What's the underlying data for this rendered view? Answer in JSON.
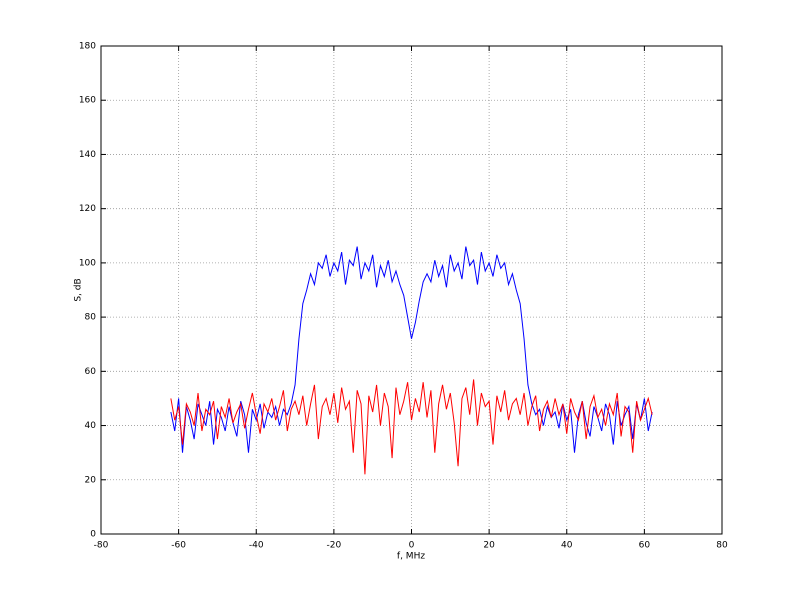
{
  "chart_data": {
    "type": "line",
    "xlabel": "f, MHz",
    "ylabel": "S, dB",
    "x": [
      -62,
      -61,
      -60,
      -59,
      -58,
      -57,
      -56,
      -55,
      -54,
      -53,
      -52,
      -51,
      -50,
      -49,
      -48,
      -47,
      -46,
      -45,
      -44,
      -43,
      -42,
      -41,
      -40,
      -39,
      -38,
      -37,
      -36,
      -35,
      -34,
      -33,
      -32,
      -31,
      -30,
      -29,
      -28,
      -27,
      -26,
      -25,
      -24,
      -23,
      -22,
      -21,
      -20,
      -19,
      -18,
      -17,
      -16,
      -15,
      -14,
      -13,
      -12,
      -11,
      -10,
      -9,
      -8,
      -7,
      -6,
      -5,
      -4,
      -3,
      -2,
      -1,
      0,
      1,
      2,
      3,
      4,
      5,
      6,
      7,
      8,
      9,
      10,
      11,
      12,
      13,
      14,
      15,
      16,
      17,
      18,
      19,
      20,
      21,
      22,
      23,
      24,
      25,
      26,
      27,
      28,
      29,
      30,
      31,
      32,
      33,
      34,
      35,
      36,
      37,
      38,
      39,
      40,
      41,
      42,
      43,
      44,
      45,
      46,
      47,
      48,
      49,
      50,
      51,
      52,
      53,
      54,
      55,
      56,
      57,
      58,
      59,
      60,
      61,
      62
    ],
    "series": [
      {
        "color": "#0000ff",
        "values": [
          45,
          38,
          50,
          30,
          47,
          42,
          35,
          48,
          44,
          40,
          49,
          33,
          46,
          43,
          38,
          47,
          41,
          36,
          49,
          44,
          30,
          46,
          42,
          48,
          39,
          45,
          43,
          47,
          40,
          46,
          44,
          48,
          55,
          72,
          85,
          90,
          96,
          92,
          100,
          98,
          103,
          95,
          100,
          97,
          104,
          92,
          101,
          99,
          106,
          94,
          100,
          97,
          103,
          91,
          99,
          95,
          101,
          93,
          97,
          92,
          88,
          80,
          72,
          78,
          86,
          93,
          96,
          93,
          101,
          95,
          99,
          91,
          103,
          97,
          100,
          94,
          106,
          99,
          101,
          92,
          104,
          97,
          100,
          95,
          103,
          98,
          100,
          92,
          96,
          90,
          85,
          72,
          55,
          48,
          44,
          46,
          40,
          47,
          43,
          45,
          39,
          48,
          42,
          46,
          30,
          44,
          49,
          41,
          36,
          47,
          43,
          38,
          48,
          44,
          33,
          49,
          40,
          44,
          47,
          35,
          48,
          42,
          50,
          38,
          45
        ]
      },
      {
        "color": "#ff0000",
        "values": [
          50,
          42,
          47,
          33,
          48,
          45,
          40,
          52,
          38,
          46,
          44,
          49,
          35,
          47,
          43,
          50,
          41,
          45,
          48,
          39,
          46,
          52,
          44,
          37,
          48,
          45,
          50,
          42,
          47,
          53,
          38,
          46,
          49,
          44,
          51,
          40,
          48,
          55,
          35,
          47,
          50,
          44,
          52,
          41,
          54,
          46,
          49,
          30,
          53,
          48,
          22,
          51,
          45,
          55,
          40,
          52,
          47,
          28,
          54,
          44,
          49,
          56,
          42,
          50,
          45,
          56,
          43,
          53,
          30,
          48,
          55,
          46,
          52,
          41,
          25,
          50,
          54,
          44,
          57,
          40,
          52,
          47,
          49,
          33,
          51,
          45,
          53,
          42,
          48,
          50,
          44,
          52,
          40,
          47,
          51,
          38,
          46,
          49,
          43,
          50,
          44,
          48,
          37,
          50,
          45,
          42,
          49,
          35,
          47,
          51,
          43,
          46,
          40,
          48,
          44,
          52,
          36,
          47,
          45,
          30,
          49,
          42,
          46,
          50,
          44
        ]
      }
    ],
    "xlim": [
      -80,
      80
    ],
    "xticks": [
      -80,
      -60,
      -40,
      -20,
      0,
      20,
      40,
      60,
      80
    ],
    "ylim": [
      0,
      180
    ],
    "yticks": [
      0,
      20,
      40,
      60,
      80,
      100,
      120,
      140,
      160,
      180
    ],
    "grid": true
  }
}
